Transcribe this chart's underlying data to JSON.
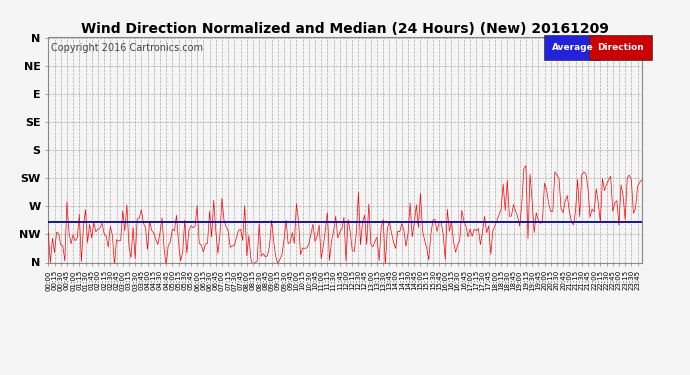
{
  "title": "Wind Direction Normalized and Median (24 Hours) (New) 20161209",
  "copyright": "Copyright 2016 Cartronics.com",
  "yticks_labels": [
    "N",
    "NW",
    "W",
    "SW",
    "S",
    "SE",
    "E",
    "NE",
    "N"
  ],
  "yticks_values": [
    360,
    315,
    270,
    225,
    180,
    135,
    90,
    45,
    0
  ],
  "ylim": [
    0,
    360
  ],
  "plot_bg": "#f5f5f5",
  "red_color": "#ff0000",
  "blue_color": "#0000bb",
  "avg_direction": 295,
  "title_fontsize": 10,
  "copyright_fontsize": 7
}
